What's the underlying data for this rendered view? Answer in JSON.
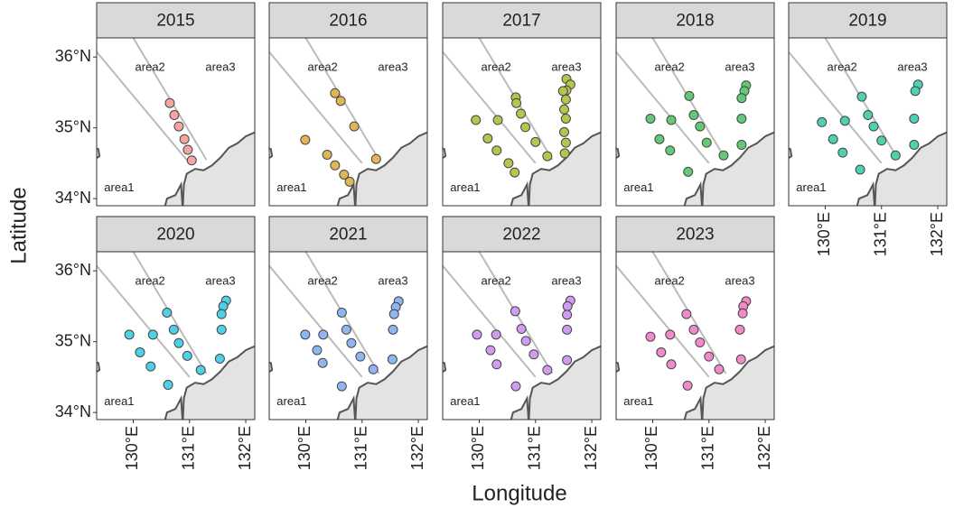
{
  "chart_data": {
    "type": "scatter",
    "xlabel": "Longitude",
    "ylabel": "Latitude",
    "xlim": [
      129.35,
      132.16
    ],
    "ylim": [
      33.9,
      36.27
    ],
    "xticks": [
      {
        "value": 130,
        "label": "130°E"
      },
      {
        "value": 131,
        "label": "131°E"
      },
      {
        "value": 132,
        "label": "132°E"
      }
    ],
    "yticks": [
      {
        "value": 34,
        "label": "34°N"
      },
      {
        "value": 35,
        "label": "35°N"
      },
      {
        "value": 36,
        "label": "36°N"
      }
    ],
    "area_labels": [
      "area1",
      "area2",
      "area3"
    ],
    "facets": [
      {
        "title": "2015",
        "color": "#f4a6a0",
        "x": [
          130.65,
          130.73,
          130.81,
          130.91,
          130.97,
          131.04
        ],
        "y": [
          35.35,
          35.18,
          35.02,
          34.84,
          34.69,
          34.54
        ]
      },
      {
        "title": "2016",
        "color": "#e0b656",
        "x": [
          130.52,
          130.62,
          130.86,
          129.99,
          130.38,
          130.52,
          130.68,
          130.78,
          131.25
        ],
        "y": [
          35.49,
          35.38,
          35.02,
          34.83,
          34.62,
          34.47,
          34.34,
          34.24,
          34.56
        ]
      },
      {
        "title": "2017",
        "color": "#b7c450",
        "x": [
          129.94,
          130.15,
          130.31,
          130.33,
          130.52,
          130.63,
          130.65,
          130.66,
          130.74,
          130.82,
          131.0,
          131.21,
          131.55,
          131.62,
          131.55,
          131.49,
          131.54,
          131.51,
          131.54,
          131.51,
          131.54,
          131.52
        ],
        "y": [
          35.11,
          34.85,
          34.68,
          35.11,
          34.5,
          34.37,
          35.43,
          35.35,
          35.2,
          35.01,
          34.8,
          34.6,
          35.69,
          35.61,
          35.53,
          35.52,
          35.4,
          35.26,
          35.13,
          34.94,
          34.79,
          34.64
        ]
      },
      {
        "title": "2018",
        "color": "#63c978",
        "x": [
          129.96,
          130.33,
          130.12,
          130.31,
          130.65,
          130.73,
          130.84,
          130.96,
          131.26,
          130.63,
          131.66,
          131.63,
          131.58,
          131.58,
          131.58
        ],
        "y": [
          35.13,
          35.11,
          34.84,
          34.68,
          35.45,
          35.18,
          35.02,
          34.79,
          34.61,
          34.38,
          35.6,
          35.52,
          35.42,
          35.13,
          34.76
        ]
      },
      {
        "title": "2019",
        "color": "#4fd0b0",
        "x": [
          129.94,
          130.35,
          130.14,
          130.31,
          130.65,
          130.76,
          130.86,
          131.0,
          131.25,
          130.62,
          131.65,
          131.6,
          131.58,
          131.58
        ],
        "y": [
          35.08,
          35.1,
          34.84,
          34.65,
          35.44,
          35.18,
          35.02,
          34.82,
          34.61,
          34.41,
          35.61,
          35.52,
          35.13,
          34.76
        ]
      },
      {
        "title": "2020",
        "color": "#4fd0e8",
        "x": [
          129.93,
          130.35,
          130.12,
          130.31,
          130.6,
          130.72,
          130.81,
          130.96,
          131.2,
          130.62,
          131.65,
          131.6,
          131.57,
          131.57,
          131.54
        ],
        "y": [
          35.1,
          35.1,
          34.85,
          34.65,
          35.41,
          35.17,
          34.98,
          34.8,
          34.6,
          34.39,
          35.58,
          35.5,
          35.39,
          35.17,
          34.76
        ]
      },
      {
        "title": "2021",
        "color": "#8eb6f0",
        "x": [
          129.99,
          130.31,
          130.2,
          130.3,
          130.64,
          130.72,
          130.81,
          130.97,
          131.2,
          130.64,
          131.65,
          131.6,
          131.57,
          131.55,
          131.54
        ],
        "y": [
          35.1,
          35.1,
          34.88,
          34.7,
          35.41,
          35.17,
          34.98,
          34.79,
          34.61,
          34.37,
          35.57,
          35.49,
          35.39,
          35.17,
          34.75
        ]
      },
      {
        "title": "2022",
        "color": "#cf9cf0",
        "x": [
          129.96,
          130.3,
          130.2,
          130.31,
          130.64,
          130.75,
          130.83,
          130.97,
          131.21,
          130.65,
          131.62,
          131.57,
          131.56,
          131.56,
          131.56
        ],
        "y": [
          35.1,
          35.1,
          34.88,
          34.68,
          35.43,
          35.18,
          35.01,
          34.82,
          34.6,
          34.37,
          35.58,
          35.5,
          35.38,
          35.17,
          34.74
        ]
      },
      {
        "title": "2023",
        "color": "#f08ac9",
        "x": [
          129.96,
          130.31,
          130.15,
          130.33,
          130.6,
          130.73,
          130.84,
          131.0,
          131.18,
          130.62,
          131.66,
          131.61,
          131.6,
          131.55,
          131.57
        ],
        "y": [
          35.07,
          35.1,
          34.85,
          34.68,
          35.39,
          35.17,
          34.99,
          34.79,
          34.61,
          34.38,
          35.57,
          35.5,
          35.4,
          35.17,
          34.75
        ]
      }
    ]
  }
}
